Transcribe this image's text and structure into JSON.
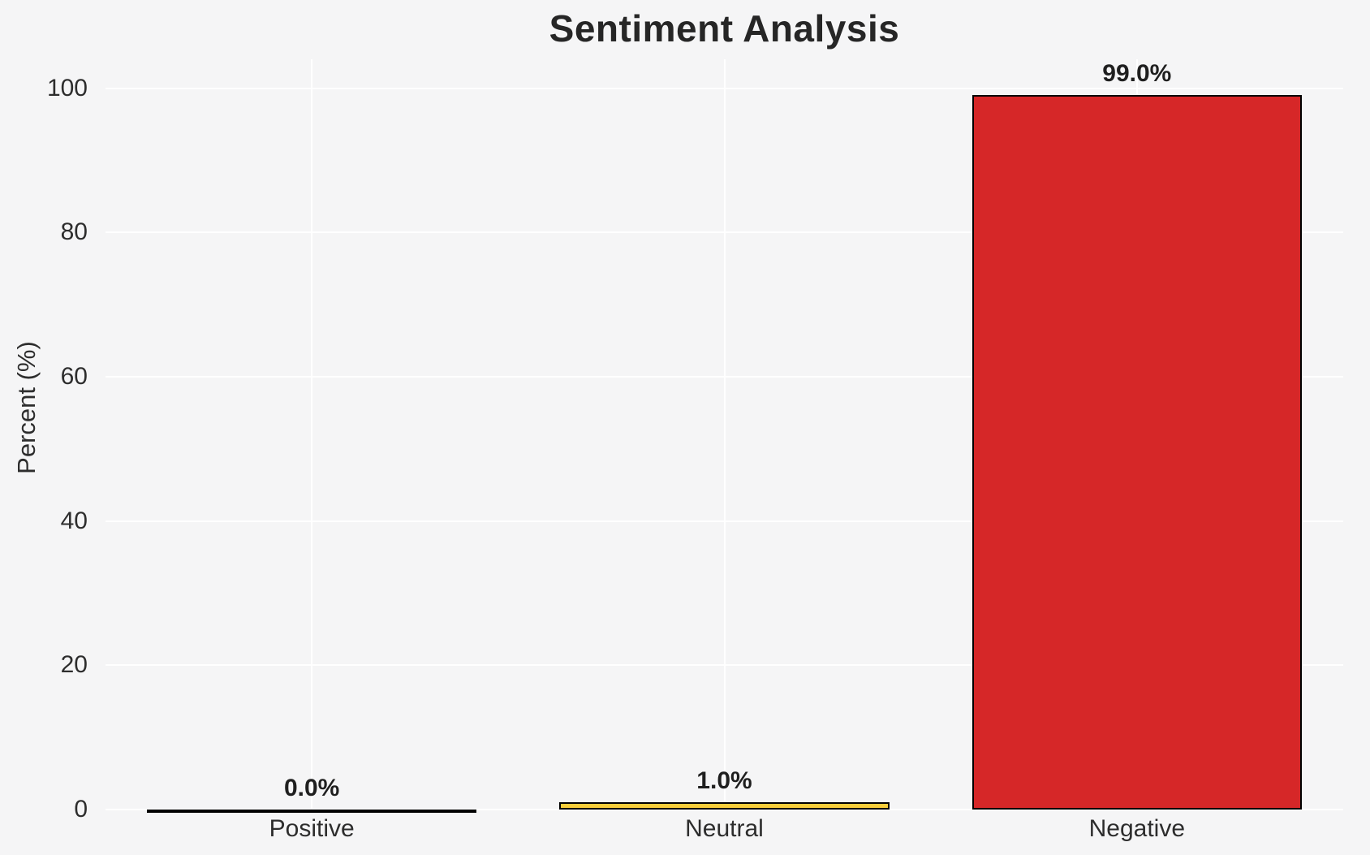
{
  "chart_data": {
    "type": "bar",
    "title": "Sentiment Analysis",
    "xlabel": "",
    "ylabel": "Percent (%)",
    "categories": [
      "Positive",
      "Neutral",
      "Negative"
    ],
    "values": [
      0.0,
      1.0,
      99.0
    ],
    "value_labels": [
      "0.0%",
      "1.0%",
      "99.0%"
    ],
    "yticks": [
      0,
      20,
      40,
      60,
      80,
      100
    ],
    "ytick_labels": [
      "0",
      "20",
      "40",
      "60",
      "80",
      "100"
    ],
    "ylim": [
      0,
      104
    ],
    "grid": true,
    "legend": "none",
    "bar_colors": [
      null,
      "#f8ce3b",
      "#d62728"
    ],
    "bar_edge_color": "#000000",
    "background_color": "#f5f5f6",
    "gridline_color": "#ffffff",
    "text_color": "#2d2d2d"
  }
}
